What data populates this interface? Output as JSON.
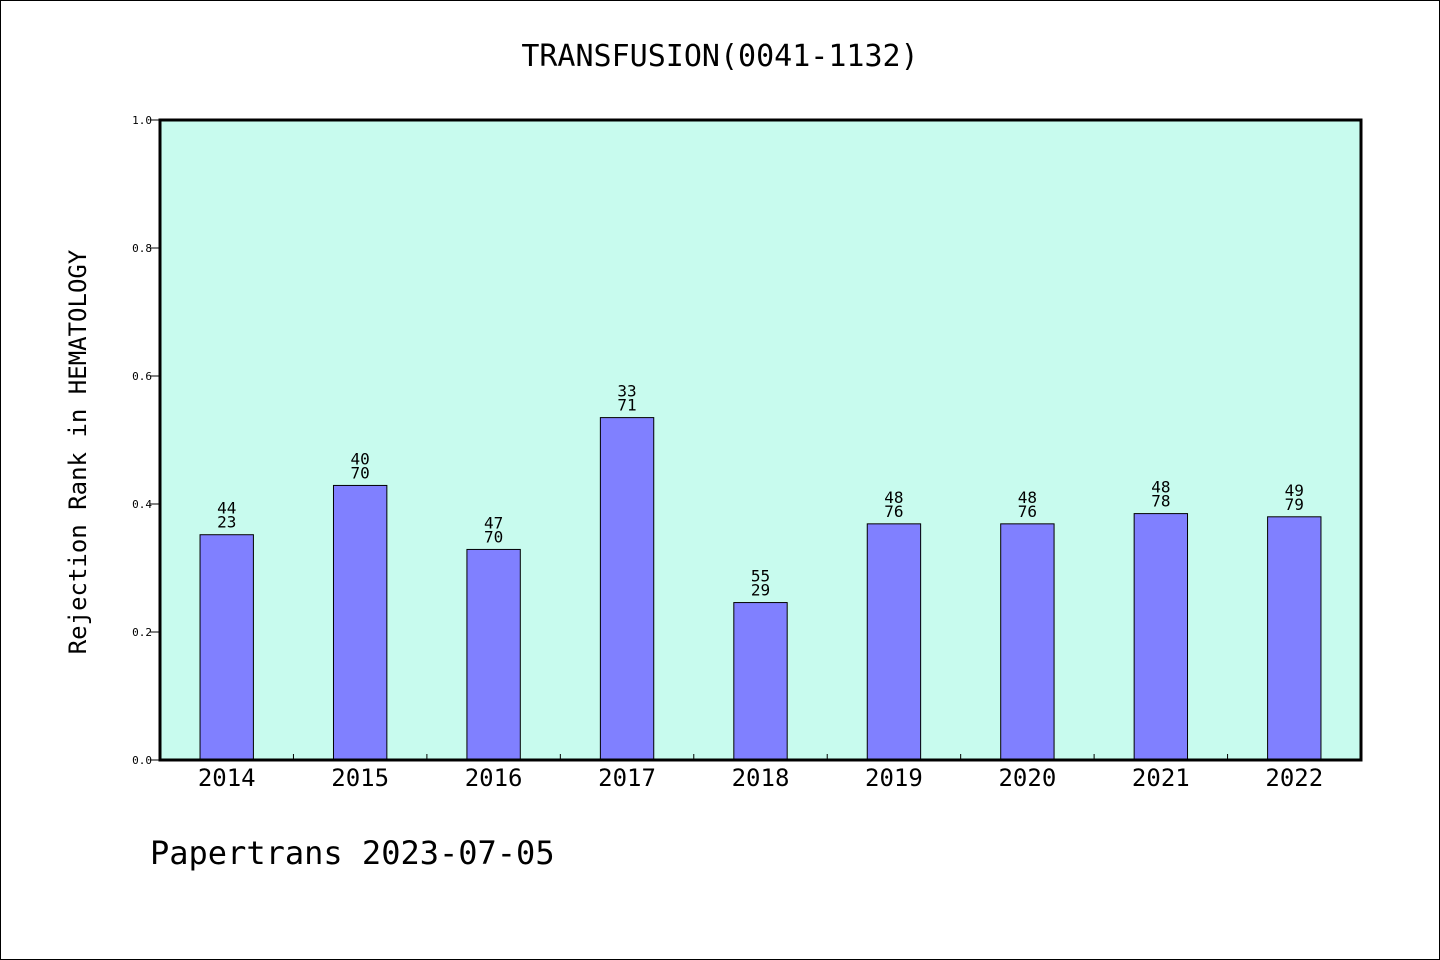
{
  "chart_data": {
    "type": "bar",
    "title": "TRANSFUSION(0041-1132)",
    "xlabel": "",
    "ylabel": "Rejection Rank in HEMATOLOGY",
    "categories": [
      "2014",
      "2015",
      "2016",
      "2017",
      "2018",
      "2019",
      "2020",
      "2021",
      "2022"
    ],
    "values": [
      0.352,
      0.429,
      0.329,
      0.535,
      0.246,
      0.369,
      0.369,
      0.385,
      0.38
    ],
    "bar_labels": [
      [
        "44",
        "23"
      ],
      [
        "40",
        "70"
      ],
      [
        "47",
        "70"
      ],
      [
        "33",
        "71"
      ],
      [
        "55",
        "29"
      ],
      [
        "48",
        "76"
      ],
      [
        "48",
        "76"
      ],
      [
        "48",
        "78"
      ],
      [
        "49",
        "79"
      ]
    ],
    "ylim": [
      0.0,
      1.0
    ],
    "yticks": [
      "0.0",
      "0.2",
      "0.4",
      "0.6",
      "0.8",
      "1.0"
    ],
    "grid": false,
    "colors": {
      "plot_background": "#c8fbee",
      "bar_fill": "#8080ff",
      "bar_stroke": "#000000"
    }
  },
  "footer": {
    "text": "Papertrans 2023-07-05"
  }
}
